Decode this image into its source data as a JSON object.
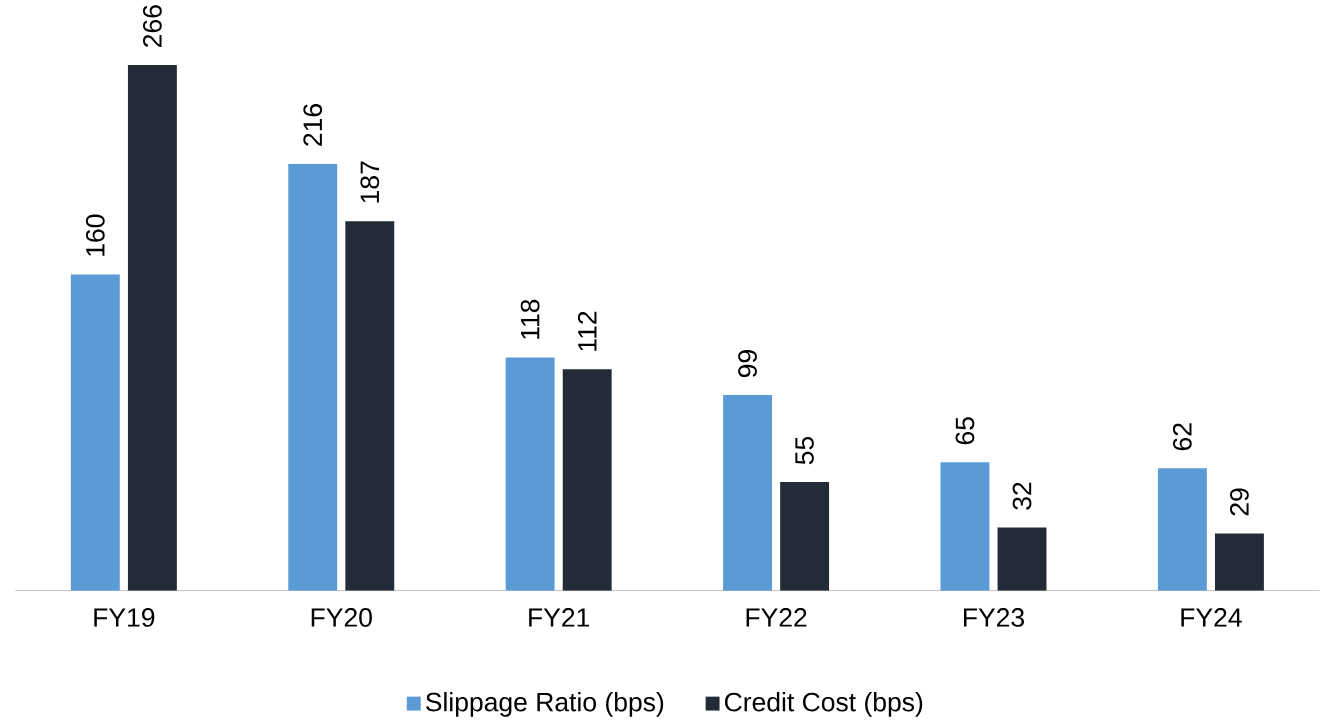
{
  "chart_data": {
    "type": "bar",
    "data_labels": true,
    "legend": "bottom",
    "categories": [
      "FY19",
      "FY20",
      "FY21",
      "FY22",
      "FY23",
      "FY24"
    ],
    "series": [
      {
        "name": "Slippage Ratio (bps)",
        "color": "#5b9bd5",
        "values": [
          160,
          216,
          118,
          99,
          65,
          62
        ]
      },
      {
        "name": "Credit Cost (bps)",
        "color": "#232b38",
        "values": [
          266,
          187,
          112,
          55,
          32,
          29
        ]
      }
    ]
  }
}
